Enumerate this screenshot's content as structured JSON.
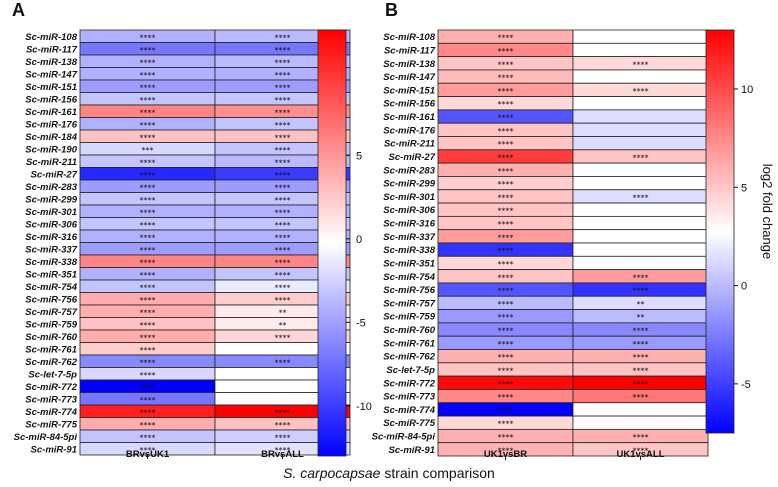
{
  "xtitle_prefix": "S. carpocapsae",
  "xtitle_suffix": " strain comparison",
  "chart_data": [
    {
      "type": "heatmap",
      "panel": "A",
      "columns": [
        "BRvsUK1",
        "BRvsALL"
      ],
      "rows": [
        "Sc-miR-108",
        "Sc-miR-117",
        "Sc-miR-138",
        "Sc-miR-147",
        "Sc-miR-151",
        "Sc-miR-156",
        "Sc-miR-161",
        "Sc-miR-176",
        "Sc-miR-184",
        "Sc-miR-190",
        "Sc-miR-211",
        "Sc-miR-27",
        "Sc-miR-283",
        "Sc-miR-299",
        "Sc-miR-301",
        "Sc-miR-306",
        "Sc-miR-316",
        "Sc-miR-337",
        "Sc-miR-338",
        "Sc-miR-351",
        "Sc-miR-754",
        "Sc-miR-756",
        "Sc-miR-757",
        "Sc-miR-759",
        "Sc-miR-760",
        "Sc-miR-761",
        "Sc-miR-762",
        "Sc-let-7-5p",
        "Sc-miR-772",
        "Sc-miR-773",
        "Sc-miR-774",
        "Sc-miR-775",
        "Sc-miR-84-5pi",
        "Sc-miR-91"
      ],
      "values": [
        [
          -4,
          -3.5
        ],
        [
          -7,
          -7
        ],
        [
          -4,
          -3.5
        ],
        [
          -4,
          -4
        ],
        [
          -5,
          -5
        ],
        [
          -3,
          -3
        ],
        [
          6,
          5.5
        ],
        [
          -4,
          -3
        ],
        [
          3,
          3
        ],
        [
          -2,
          -3
        ],
        [
          -3,
          -3.5
        ],
        [
          -11,
          -10
        ],
        [
          -5,
          -5
        ],
        [
          -3,
          -3
        ],
        [
          -4,
          -4
        ],
        [
          -3,
          -3
        ],
        [
          -4,
          -4
        ],
        [
          -5,
          -5
        ],
        [
          6,
          6
        ],
        [
          -4,
          -3
        ],
        [
          -3,
          -1
        ],
        [
          4,
          2.5
        ],
        [
          4,
          1
        ],
        [
          3,
          1
        ],
        [
          4,
          2
        ],
        [
          2.5,
          0
        ],
        [
          -6,
          -6
        ],
        [
          -2,
          0
        ],
        [
          -13,
          0
        ],
        [
          -7,
          0
        ],
        [
          11,
          12.5
        ],
        [
          4,
          3
        ],
        [
          -3,
          -2.5
        ],
        [
          -2,
          -1.5
        ]
      ],
      "significance": [
        [
          "****",
          "****"
        ],
        [
          "****",
          "****"
        ],
        [
          "****",
          "****"
        ],
        [
          "****",
          "****"
        ],
        [
          "****",
          "****"
        ],
        [
          "****",
          "****"
        ],
        [
          "****",
          "****"
        ],
        [
          "****",
          "****"
        ],
        [
          "****",
          "****"
        ],
        [
          "***",
          "****"
        ],
        [
          "****",
          "****"
        ],
        [
          "****",
          "****"
        ],
        [
          "****",
          "****"
        ],
        [
          "****",
          "****"
        ],
        [
          "****",
          "****"
        ],
        [
          "****",
          "****"
        ],
        [
          "****",
          "****"
        ],
        [
          "****",
          "****"
        ],
        [
          "****",
          "****"
        ],
        [
          "****",
          "****"
        ],
        [
          "****",
          "****"
        ],
        [
          "****",
          "****"
        ],
        [
          "****",
          "**"
        ],
        [
          "****",
          "**"
        ],
        [
          "****",
          "****"
        ],
        [
          "****",
          ""
        ],
        [
          "****",
          "****"
        ],
        [
          "****",
          ""
        ],
        [
          "****",
          ""
        ],
        [
          "****",
          ""
        ],
        [
          "****",
          "****"
        ],
        [
          "****",
          "****"
        ],
        [
          "****",
          "****"
        ],
        [
          "****",
          "****"
        ]
      ],
      "colorbar": {
        "vmin": -13,
        "vmax": 12.5,
        "ticks": [
          5,
          0,
          -5,
          -10
        ],
        "tick_labels": [
          "5",
          "0",
          "-5",
          "-10"
        ]
      }
    },
    {
      "type": "heatmap",
      "panel": "B",
      "columns": [
        "UK1vsBR",
        "UK1vsALL"
      ],
      "rows": [
        "Sc-miR-108",
        "Sc-miR-117",
        "Sc-miR-138",
        "Sc-miR-147",
        "Sc-miR-151",
        "Sc-miR-156",
        "Sc-miR-161",
        "Sc-miR-176",
        "Sc-miR-211",
        "Sc-miR-27",
        "Sc-miR-283",
        "Sc-miR-299",
        "Sc-miR-301",
        "Sc-miR-306",
        "Sc-miR-316",
        "Sc-miR-337",
        "Sc-miR-338",
        "Sc-miR-351",
        "Sc-miR-754",
        "Sc-miR-756",
        "Sc-miR-757",
        "Sc-miR-759",
        "Sc-miR-760",
        "Sc-miR-761",
        "Sc-miR-762",
        "Sc-let-7-5p",
        "Sc-miR-772",
        "Sc-miR-773",
        "Sc-miR-774",
        "Sc-miR-775",
        "Sc-miR-84-5pi",
        "Sc-miR-91"
      ],
      "values": [
        [
          4,
          0
        ],
        [
          6,
          0
        ],
        [
          3,
          2
        ],
        [
          3.5,
          0
        ],
        [
          5,
          2
        ],
        [
          2,
          0
        ],
        [
          -5,
          -1
        ],
        [
          3,
          -1
        ],
        [
          3,
          -1
        ],
        [
          10,
          3
        ],
        [
          4,
          0
        ],
        [
          2.5,
          0
        ],
        [
          3,
          -1
        ],
        [
          3,
          0
        ],
        [
          3,
          0
        ],
        [
          5,
          0
        ],
        [
          -6,
          0
        ],
        [
          2,
          0
        ],
        [
          3,
          5
        ],
        [
          -5,
          -6
        ],
        [
          -2,
          -1
        ],
        [
          -3,
          -2
        ],
        [
          -3.5,
          -3.5
        ],
        [
          -3,
          -3
        ],
        [
          4,
          4
        ],
        [
          3,
          3
        ],
        [
          12.5,
          13
        ],
        [
          6,
          7
        ],
        [
          -12,
          0
        ],
        [
          2,
          0
        ],
        [
          4,
          4
        ],
        [
          4,
          3
        ]
      ],
      "significance": [
        [
          "****",
          ""
        ],
        [
          "****",
          ""
        ],
        [
          "****",
          "****"
        ],
        [
          "****",
          ""
        ],
        [
          "****",
          "****"
        ],
        [
          "****",
          ""
        ],
        [
          "****",
          ""
        ],
        [
          "****",
          ""
        ],
        [
          "****",
          ""
        ],
        [
          "****",
          "****"
        ],
        [
          "****",
          ""
        ],
        [
          "****",
          ""
        ],
        [
          "****",
          "****"
        ],
        [
          "****",
          ""
        ],
        [
          "****",
          ""
        ],
        [
          "****",
          ""
        ],
        [
          "****",
          ""
        ],
        [
          "****",
          ""
        ],
        [
          "****",
          "****"
        ],
        [
          "****",
          "****"
        ],
        [
          "****",
          "**"
        ],
        [
          "****",
          "**"
        ],
        [
          "****",
          "****"
        ],
        [
          "****",
          "****"
        ],
        [
          "****",
          "****"
        ],
        [
          "****",
          "****"
        ],
        [
          "****",
          "****"
        ],
        [
          "****",
          "****"
        ],
        [
          "****",
          ""
        ],
        [
          "****",
          ""
        ],
        [
          "****",
          "****"
        ],
        [
          "****",
          "****"
        ]
      ],
      "colorbar": {
        "title": "log2 fold change",
        "vmin": -7.5,
        "vmax": 13,
        "ticks": [
          10,
          5,
          0,
          -5
        ],
        "tick_labels": [
          "10",
          "5",
          "0",
          "-5"
        ]
      }
    }
  ]
}
